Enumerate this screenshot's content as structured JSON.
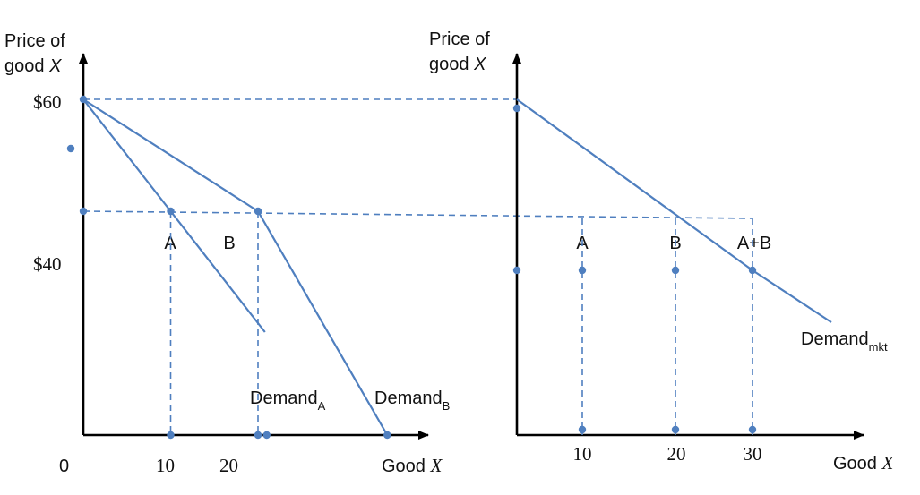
{
  "colors": {
    "curve": "#4f7fbf",
    "axis": "#000000",
    "text": "#111111"
  },
  "chart_data": [
    {
      "type": "line",
      "panel": "left",
      "y_title_line1": "Price of",
      "y_title_line2_prefix": "good ",
      "y_title_line2_var": "X",
      "x_title_prefix": "Good ",
      "x_title_var": "X",
      "origin_label": "0",
      "y_tick_labels": [
        "$60",
        "$40"
      ],
      "x_tick_labels": [
        "10",
        "20"
      ],
      "xlim": [
        0,
        35
      ],
      "ylim": [
        0,
        68
      ],
      "series": [
        {
          "name": "A",
          "points": [
            [
              0,
              60
            ],
            [
              10,
              40
            ],
            [
              20.8,
              18.4
            ]
          ],
          "label_main": "Demand",
          "label_sub": "A"
        },
        {
          "name": "B",
          "points": [
            [
              0,
              60
            ],
            [
              20,
              40
            ],
            [
              34.8,
              0
            ]
          ],
          "label_main": "Demand",
          "label_sub": "B"
        }
      ],
      "point_labels": [
        {
          "text": "A",
          "x": 10,
          "y": 40
        },
        {
          "text": "B",
          "x": 20,
          "y": 40
        }
      ],
      "markers": [
        [
          0,
          60
        ],
        [
          0,
          40
        ],
        [
          10,
          40
        ],
        [
          20,
          40
        ],
        [
          10,
          0
        ],
        [
          20,
          0
        ],
        [
          21,
          0
        ],
        [
          34.8,
          0
        ]
      ],
      "grid": false,
      "legend": "none"
    },
    {
      "type": "line",
      "panel": "right",
      "y_title_line1": "Price of",
      "y_title_line2_prefix": "good ",
      "y_title_line2_var": "X",
      "x_title_prefix": "Good ",
      "x_title_var": "X",
      "x_tick_labels": [
        "10",
        "20",
        "30"
      ],
      "xlim": [
        0,
        42
      ],
      "ylim": [
        0,
        68
      ],
      "series": [
        {
          "name": "mkt",
          "points": [
            [
              0,
              60
            ],
            [
              30,
              40
            ],
            [
              38,
              34.7
            ]
          ],
          "label_main": "Demand",
          "label_sub": "mkt"
        }
      ],
      "point_labels": [
        {
          "text": "A",
          "x": 10,
          "y": 40
        },
        {
          "text": "B",
          "x": 20,
          "y": 40
        },
        {
          "text": "A+B",
          "x": 30,
          "y": 40
        }
      ],
      "markers": [
        [
          0,
          60
        ],
        [
          0,
          40
        ],
        [
          10,
          40
        ],
        [
          20,
          40
        ],
        [
          30,
          40
        ],
        [
          10,
          0
        ],
        [
          20,
          0
        ],
        [
          30,
          0
        ]
      ],
      "grid": false,
      "legend": "none"
    }
  ]
}
